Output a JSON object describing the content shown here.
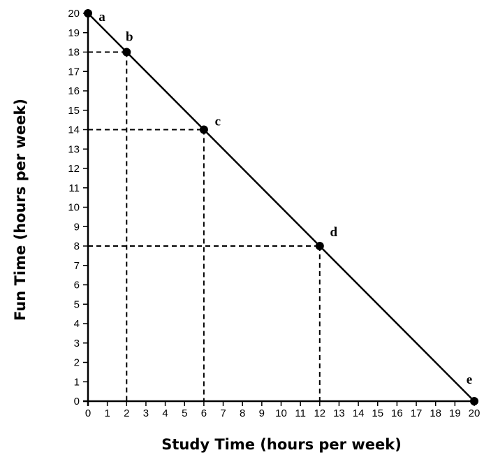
{
  "chart_data": {
    "type": "line",
    "xlabel": "Study Time (hours per week)",
    "ylabel": "Fun Time (hours per week)",
    "xlim": [
      0,
      20
    ],
    "ylim": [
      0,
      20
    ],
    "x_ticks": [
      "0",
      "1",
      "2",
      "3",
      "4",
      "5",
      "6",
      "7",
      "8",
      "9",
      "10",
      "11",
      "12",
      "13",
      "14",
      "15",
      "16",
      "17",
      "18",
      "19",
      "20"
    ],
    "y_ticks": [
      "0",
      "1",
      "2",
      "3",
      "4",
      "5",
      "6",
      "7",
      "8",
      "9",
      "10",
      "11",
      "12",
      "13",
      "14",
      "15",
      "16",
      "17",
      "18",
      "19",
      "20"
    ],
    "grid": false,
    "series": [
      {
        "line_color": "#000000",
        "points": [
          {
            "label": "a",
            "x": 0,
            "y": 20
          },
          {
            "label": "b",
            "x": 2,
            "y": 18
          },
          {
            "label": "c",
            "x": 6,
            "y": 14
          },
          {
            "label": "d",
            "x": 12,
            "y": 8
          },
          {
            "label": "e",
            "x": 20,
            "y": 0
          }
        ]
      }
    ],
    "reference_lines": [
      {
        "point": "b",
        "style": "dashed"
      },
      {
        "point": "c",
        "style": "dashed"
      },
      {
        "point": "d",
        "style": "dashed"
      }
    ]
  }
}
